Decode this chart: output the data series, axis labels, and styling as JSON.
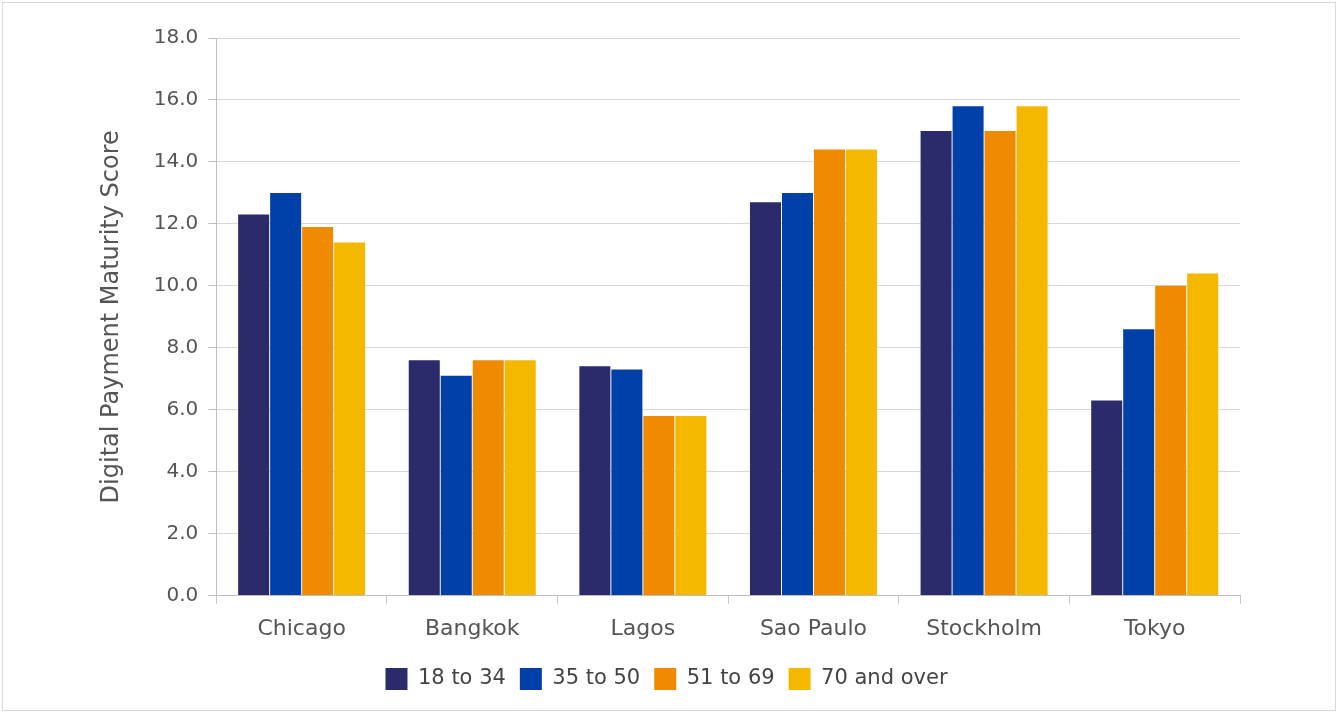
{
  "chart_data": {
    "type": "bar",
    "ylabel": "Digital Payment Maturity Score",
    "categories": [
      "Chicago",
      "Bangkok",
      "Lagos",
      "Sao Paulo",
      "Stockholm",
      "Tokyo"
    ],
    "series": [
      {
        "name": "18 to 34",
        "color": "#2b2a6b",
        "values": [
          12.3,
          7.6,
          7.4,
          12.7,
          15.0,
          6.3
        ]
      },
      {
        "name": "35 to 50",
        "color": "#0040a8",
        "values": [
          13.0,
          7.1,
          7.3,
          13.0,
          15.8,
          8.6
        ]
      },
      {
        "name": "51 to 69",
        "color": "#f08a00",
        "values": [
          11.9,
          7.6,
          5.8,
          14.4,
          15.0,
          10.0
        ]
      },
      {
        "name": "70 and over",
        "color": "#f5b800",
        "values": [
          11.4,
          7.6,
          5.8,
          14.4,
          15.8,
          10.4
        ]
      }
    ],
    "ylim": [
      0,
      18
    ],
    "yticks": [
      {
        "value": 0,
        "label": "0.0"
      },
      {
        "value": 2,
        "label": "2.0"
      },
      {
        "value": 4,
        "label": "4.0"
      },
      {
        "value": 6,
        "label": "6.0"
      },
      {
        "value": 8,
        "label": "8.0"
      },
      {
        "value": 10,
        "label": "10.0"
      },
      {
        "value": 12,
        "label": "12.0"
      },
      {
        "value": 14,
        "label": "14.0"
      },
      {
        "value": 16,
        "label": "16.0"
      },
      {
        "value": 18,
        "label": "18.0"
      }
    ],
    "grid": "y",
    "legend": "bottom"
  }
}
